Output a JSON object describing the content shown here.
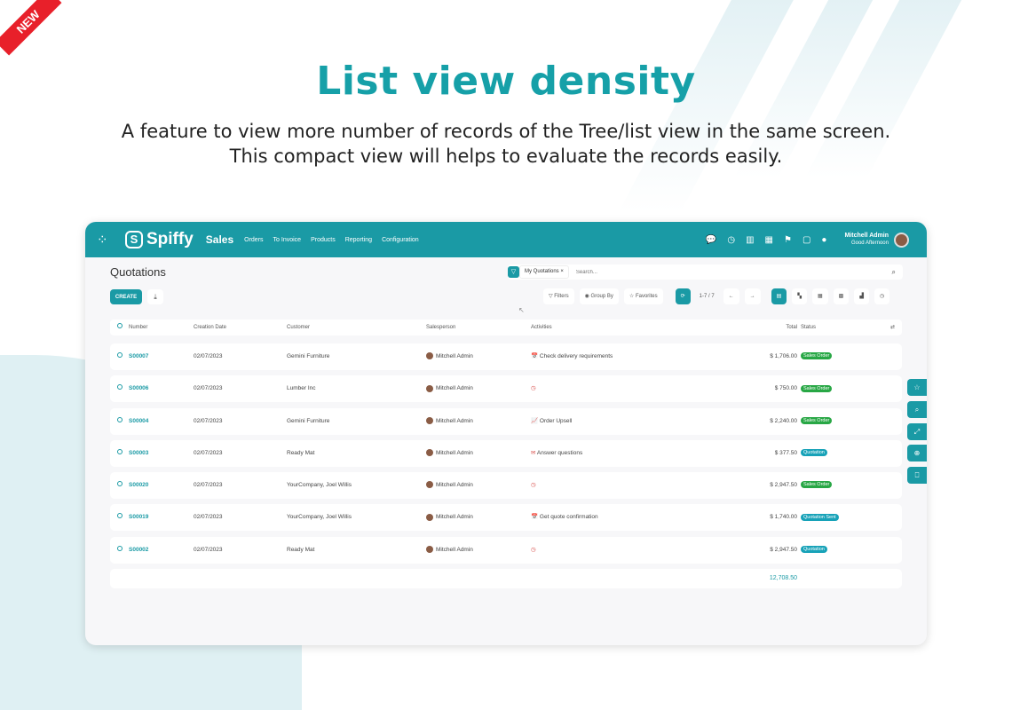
{
  "banner": {
    "ribbon": "NEW",
    "title": "List view density",
    "subtitle_lines": [
      "A feature to view more number of records of the Tree/list view in the same screen.",
      "This compact view will helps to evaluate the records easily."
    ]
  },
  "colors": {
    "brand": "#1a9aa5",
    "sales_order": "#28a745",
    "quotation": "#17a2b8",
    "ribbon": "#e8202a"
  },
  "header": {
    "logo": "Spiffy",
    "app": "Sales",
    "menu": [
      "Orders",
      "To Invoice",
      "Products",
      "Reporting",
      "Configuration"
    ],
    "user_name": "Mitchell Admin",
    "greeting": "Good Afternoon",
    "icons": [
      "chat-icon",
      "activity-clock-icon",
      "building-icon",
      "calculator-icon",
      "signpost-icon",
      "note-icon",
      "lightbulb-icon"
    ]
  },
  "page": {
    "title": "Quotations",
    "create": "CREATE",
    "facet": "My Quotations",
    "search_placeholder": "Search...",
    "filters": "Filters",
    "group_by": "Group By",
    "favorites": "Favorites",
    "pager": "1-7 / 7"
  },
  "table": {
    "headers": {
      "number": "Number",
      "date": "Creation Date",
      "customer": "Customer",
      "salesperson": "Salesperson",
      "activities": "Activities",
      "total": "Total",
      "status": "Status"
    },
    "rows": [
      {
        "number": "S00007",
        "date": "02/07/2023",
        "customer": "Gemini Furniture",
        "salesperson": "Mitchell Admin",
        "activity_icon": "📅",
        "activity": "Check delivery requirements",
        "total": "$ 1,706.00",
        "status": "Sales Order",
        "status_type": "sales_order"
      },
      {
        "number": "S00006",
        "date": "02/07/2023",
        "customer": "Lumber Inc",
        "salesperson": "Mitchell Admin",
        "activity_icon": "◷",
        "activity": "",
        "total": "$ 750.00",
        "status": "Sales Order",
        "status_type": "sales_order"
      },
      {
        "number": "S00004",
        "date": "02/07/2023",
        "customer": "Gemini Furniture",
        "salesperson": "Mitchell Admin",
        "activity_icon": "📈",
        "activity": "Order Upsell",
        "total": "$ 2,240.00",
        "status": "Sales Order",
        "status_type": "sales_order"
      },
      {
        "number": "S00003",
        "date": "02/07/2023",
        "customer": "Ready Mat",
        "salesperson": "Mitchell Admin",
        "activity_icon": "✉",
        "activity": "Answer questions",
        "total": "$ 377.50",
        "status": "Quotation",
        "status_type": "quotation"
      },
      {
        "number": "S00020",
        "date": "02/07/2023",
        "customer": "YourCompany, Joel Willis",
        "salesperson": "Mitchell Admin",
        "activity_icon": "◷",
        "activity": "",
        "total": "$ 2,947.50",
        "status": "Sales Order",
        "status_type": "sales_order"
      },
      {
        "number": "S00019",
        "date": "02/07/2023",
        "customer": "YourCompany, Joel Willis",
        "salesperson": "Mitchell Admin",
        "activity_icon": "📅",
        "activity": "Get quote confirmation",
        "total": "$ 1,740.00",
        "status": "Quotation Sent",
        "status_type": "quotation"
      },
      {
        "number": "S00002",
        "date": "02/07/2023",
        "customer": "Ready Mat",
        "salesperson": "Mitchell Admin",
        "activity_icon": "◷",
        "activity": "",
        "total": "$ 2,947.50",
        "status": "Quotation",
        "status_type": "quotation"
      }
    ],
    "grand_total": "12,708.50"
  }
}
